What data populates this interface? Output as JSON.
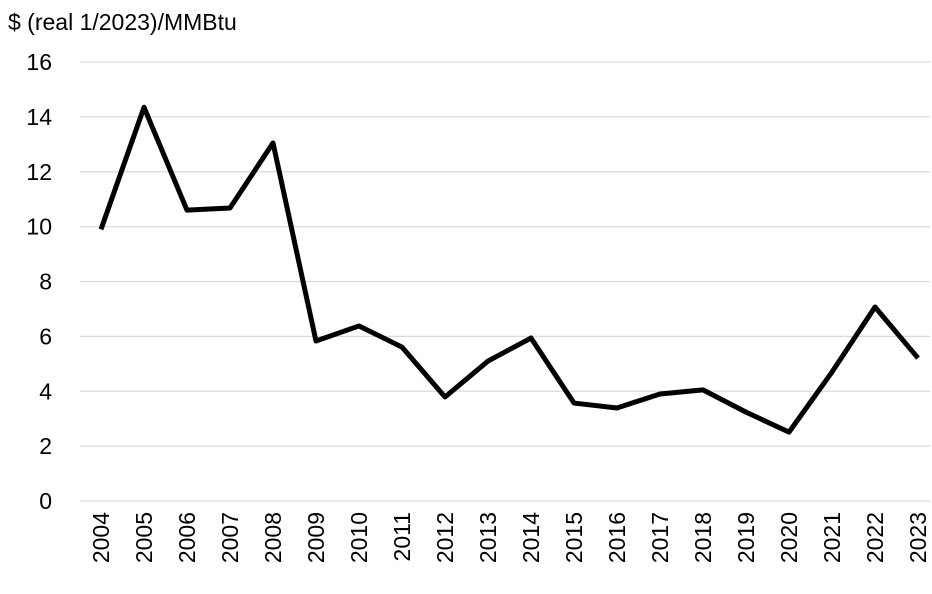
{
  "chart_data": {
    "type": "line",
    "y_label": "$ (real 1/2023)/MMBtu",
    "categories": [
      "2004",
      "2005",
      "2006",
      "2007",
      "2008",
      "2009",
      "2010",
      "2011",
      "2012",
      "2013",
      "2014",
      "2015",
      "2016",
      "2017",
      "2018",
      "2019",
      "2020",
      "2021",
      "2022",
      "2023"
    ],
    "series": [
      {
        "color": "#000000",
        "values": [
          9.9,
          14.35,
          10.6,
          10.68,
          13.05,
          5.83,
          6.38,
          5.61,
          3.79,
          5.1,
          5.94,
          3.57,
          3.39,
          3.9,
          4.05,
          3.24,
          2.51,
          4.7,
          7.07,
          5.21
        ]
      }
    ],
    "ylim": [
      0,
      16
    ],
    "yticks": [
      0,
      2,
      4,
      6,
      8,
      10,
      12,
      14,
      16
    ],
    "grid": true
  }
}
